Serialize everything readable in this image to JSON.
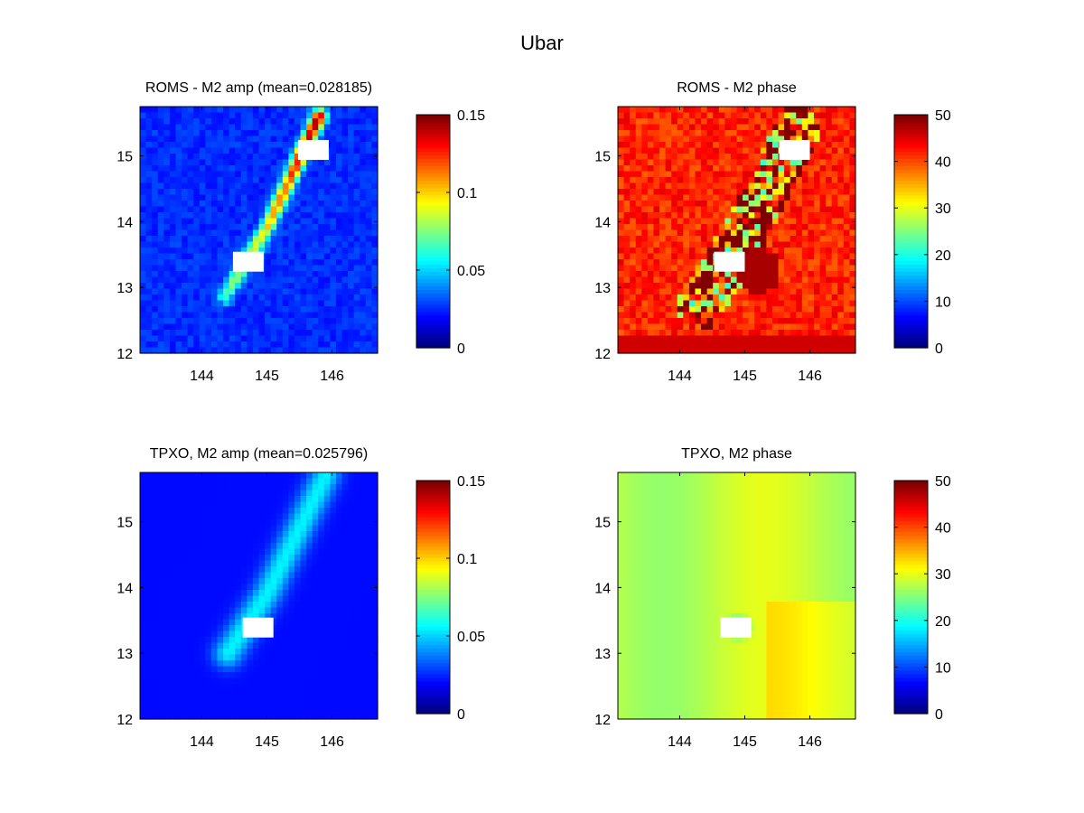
{
  "figure": {
    "title": "Ubar"
  },
  "chart_data": [
    {
      "type": "heatmap",
      "title": "ROMS - M2 amp (mean=0.028185)",
      "variable": "M2 amplitude",
      "source": "ROMS",
      "mean": 0.028185,
      "xticks": [
        "144",
        "145",
        "146"
      ],
      "yticks": [
        "12",
        "13",
        "14",
        "15"
      ],
      "xlim": [
        143.05,
        146.7
      ],
      "ylim": [
        12,
        15.75
      ],
      "clim": [
        0,
        0.15
      ],
      "colorbar_ticks": [
        "0",
        "0.05",
        "0.1",
        "0.15"
      ],
      "colormap": "jet",
      "field": "ridge",
      "background_value": 0.025,
      "peak_value": 0.15,
      "ridge_line": [
        [
          144.35,
          12.85
        ],
        [
          145.0,
          13.9
        ],
        [
          145.8,
          15.6
        ]
      ],
      "land_cells": [
        [
          144.7,
          13.35
        ],
        [
          145.7,
          15.05
        ]
      ]
    },
    {
      "type": "heatmap",
      "title": "ROMS - M2 phase",
      "variable": "M2 phase",
      "source": "ROMS",
      "xticks": [
        "144",
        "145",
        "146"
      ],
      "yticks": [
        "12",
        "13",
        "14",
        "15"
      ],
      "xlim": [
        143.05,
        146.7
      ],
      "ylim": [
        12,
        15.75
      ],
      "clim": [
        0,
        50
      ],
      "colorbar_ticks": [
        "0",
        "10",
        "20",
        "30",
        "40",
        "50"
      ],
      "colormap": "jet",
      "field": "noisy",
      "background_value": 42,
      "land_cells": [
        [
          144.75,
          13.35
        ],
        [
          145.75,
          15.05
        ]
      ]
    },
    {
      "type": "heatmap",
      "title": "TPXO, M2 amp (mean=0.025796)",
      "variable": "M2 amplitude",
      "source": "TPXO",
      "mean": 0.025796,
      "xticks": [
        "144",
        "145",
        "146"
      ],
      "yticks": [
        "12",
        "13",
        "14",
        "15"
      ],
      "xlim": [
        143.05,
        146.7
      ],
      "ylim": [
        12,
        15.75
      ],
      "clim": [
        0,
        0.15
      ],
      "colorbar_ticks": [
        "0",
        "0.05",
        "0.1",
        "0.15"
      ],
      "colormap": "jet",
      "field": "smooth-ridge",
      "background_value": 0.02,
      "peak_value": 0.055,
      "ridge_line": [
        [
          144.4,
          13.0
        ],
        [
          145.0,
          13.9
        ],
        [
          145.9,
          15.7
        ]
      ],
      "land_cells": [
        [
          144.85,
          13.35
        ]
      ]
    },
    {
      "type": "heatmap",
      "title": "TPXO, M2 phase",
      "variable": "M2 phase",
      "source": "TPXO",
      "xticks": [
        "144",
        "145",
        "146"
      ],
      "yticks": [
        "12",
        "13",
        "14",
        "15"
      ],
      "xlim": [
        143.05,
        146.7
      ],
      "ylim": [
        12,
        15.75
      ],
      "clim": [
        0,
        50
      ],
      "colorbar_ticks": [
        "0",
        "10",
        "20",
        "30",
        "40",
        "50"
      ],
      "colormap": "jet",
      "field": "smooth",
      "background_value": 28,
      "land_cells": [
        [
          144.85,
          13.35
        ]
      ]
    }
  ]
}
